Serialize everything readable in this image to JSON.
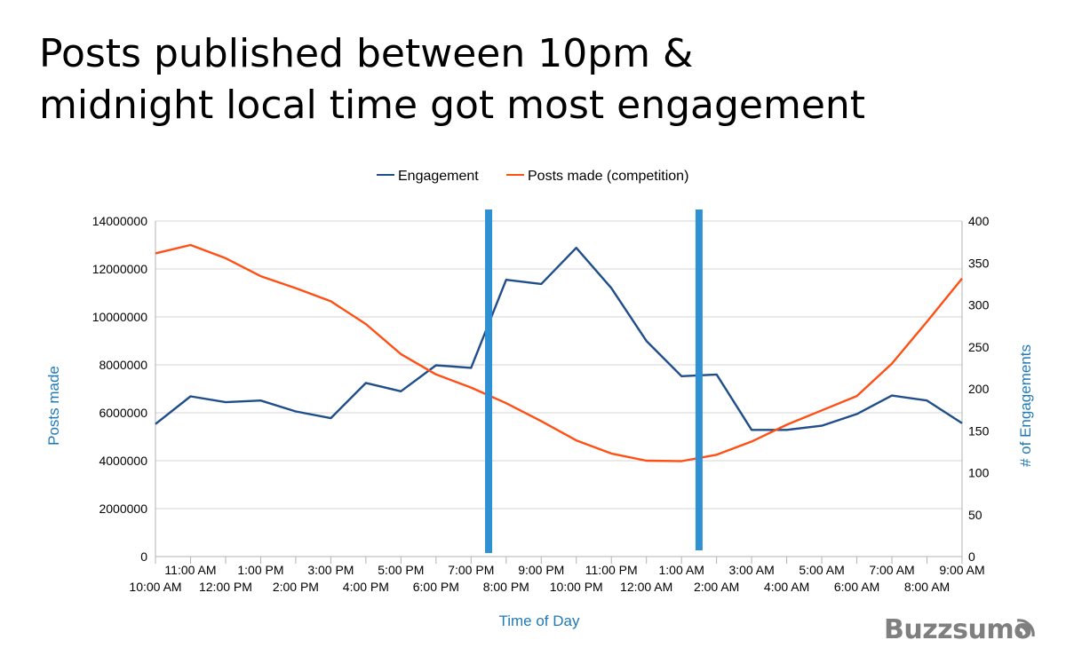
{
  "slide": {
    "title_lines": [
      "Posts published between 10pm &",
      "midnight local time got most engagement"
    ],
    "brand": "Buzzsumo"
  },
  "colors": {
    "engagement": "#1f4e8a",
    "posts": "#ff4f14",
    "marker": "#2f90d2",
    "axis_label": "#1f7ab6",
    "grid": "#d4d4d4"
  },
  "chart_data": {
    "type": "line",
    "categories": [
      "10:00 AM",
      "11:00 AM",
      "12:00 PM",
      "1:00 PM",
      "2:00 PM",
      "3:00 PM",
      "4:00 PM",
      "5:00 PM",
      "6:00 PM",
      "7:00 PM",
      "8:00 PM",
      "9:00 PM",
      "10:00 PM",
      "11:00 PM",
      "12:00 AM",
      "1:00 AM",
      "2:00 AM",
      "3:00 AM",
      "4:00 AM",
      "5:00 AM",
      "6:00 AM",
      "7:00 AM",
      "8:00 AM",
      "9:00 AM"
    ],
    "series": [
      {
        "name": "Engagement",
        "axis": "right",
        "values": [
          158,
          191,
          184,
          186,
          173,
          165,
          207,
          197,
          228,
          225,
          330,
          325,
          368,
          320,
          257,
          215,
          217,
          151,
          151,
          156,
          170,
          192,
          186,
          159
        ]
      },
      {
        "name": "Posts made (competition)",
        "axis": "left",
        "values": [
          12650000,
          13000000,
          12450000,
          11700000,
          11200000,
          10650000,
          9700000,
          8450000,
          7600000,
          7050000,
          6400000,
          5650000,
          4850000,
          4300000,
          4000000,
          3980000,
          4250000,
          4800000,
          5500000,
          6100000,
          6700000,
          8050000,
          9800000,
          11600000
        ]
      }
    ],
    "xlabel": "Time of Day",
    "ylabel": "Posts made",
    "y2label": "# of Engagements",
    "ylim": [
      0,
      14000000
    ],
    "y2lim": [
      0,
      400
    ],
    "yticks": [
      "0",
      "2000000",
      "4000000",
      "6000000",
      "8000000",
      "10000000",
      "12000000",
      "14000000"
    ],
    "y2ticks": [
      "0",
      "50",
      "100",
      "150",
      "200",
      "250",
      "300",
      "350",
      "400"
    ],
    "legend_position": "top",
    "grid": true,
    "markers_between": [
      "7:00 PM",
      "8:00 PM",
      "1:00 AM",
      "2:00 AM"
    ]
  }
}
